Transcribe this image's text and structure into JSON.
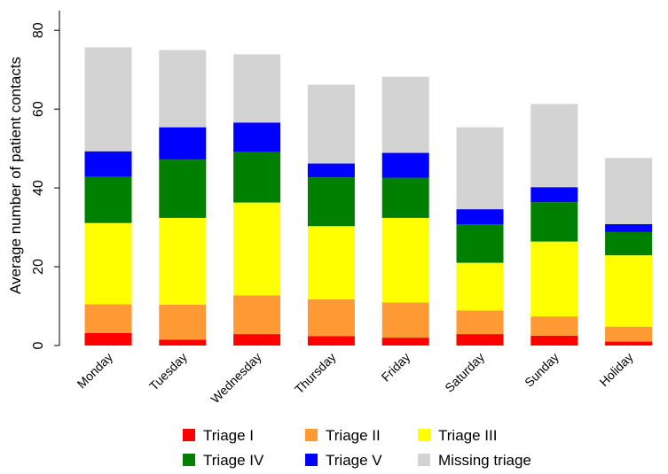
{
  "chart_data": {
    "type": "bar",
    "stacked": true,
    "categories": [
      "Monday",
      "Tuesday",
      "Wednesday",
      "Thursday",
      "Friday",
      "Saturday",
      "Sunday",
      "Holiday"
    ],
    "series": [
      {
        "name": "Triage I",
        "color": "#ff0000",
        "values": [
          3.2,
          1.5,
          2.9,
          2.4,
          2.0,
          2.9,
          2.5,
          1.0
        ]
      },
      {
        "name": "Triage II",
        "color": "#ff9933",
        "values": [
          7.3,
          8.9,
          9.8,
          9.3,
          8.9,
          6.0,
          4.9,
          3.8
        ]
      },
      {
        "name": "Triage III",
        "color": "#ffff00",
        "values": [
          20.6,
          22.0,
          23.6,
          18.6,
          21.5,
          12.1,
          19.0,
          18.1
        ]
      },
      {
        "name": "Triage IV",
        "color": "#008000",
        "values": [
          11.7,
          14.8,
          12.8,
          12.4,
          10.2,
          9.8,
          10.0,
          5.9
        ]
      },
      {
        "name": "Triage V",
        "color": "#0000ff",
        "values": [
          6.5,
          8.2,
          7.5,
          3.5,
          6.3,
          3.8,
          3.8,
          2.0
        ]
      },
      {
        "name": "Missing triage",
        "color": "#d3d3d3",
        "values": [
          26.4,
          19.6,
          17.3,
          20.0,
          19.3,
          20.8,
          21.1,
          16.8
        ]
      }
    ],
    "xlabel": "",
    "ylabel": "Average number of patient contacts",
    "ylim": [
      0,
      85
    ],
    "yticks": [
      0,
      20,
      40,
      60,
      80
    ],
    "grid": false,
    "legend_position": "bottom"
  }
}
